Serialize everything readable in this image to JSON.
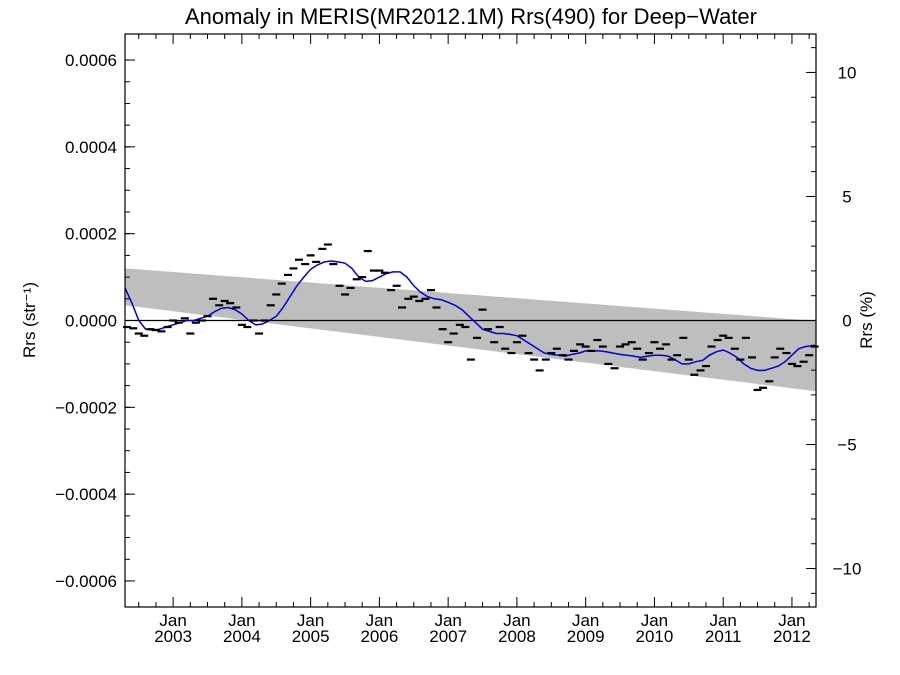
{
  "chart_data": {
    "type": "line",
    "title": "Anomaly in MERIS(MR2012.1M) Rrs(490) for Deep−Water",
    "ylabel": "Rrs (str⁻¹)",
    "ylabel_right": "Rrs (%)",
    "xlim": [
      2002.3,
      2012.35
    ],
    "ylim": [
      -0.00066,
      0.00066
    ],
    "ylim_right": [
      -11.55,
      11.55
    ],
    "yticks": [
      {
        "value": 0.0006,
        "label": "0.0006"
      },
      {
        "value": 0.0004,
        "label": "0.0004"
      },
      {
        "value": 0.0002,
        "label": "0.0002"
      },
      {
        "value": 0.0,
        "label": "0.0000"
      },
      {
        "value": -0.0002,
        "label": "−0.0002"
      },
      {
        "value": -0.0004,
        "label": "−0.0004"
      },
      {
        "value": -0.0006,
        "label": "−0.0006"
      }
    ],
    "yticks_right": [
      {
        "value": 10,
        "label": "10"
      },
      {
        "value": 5,
        "label": "5"
      },
      {
        "value": 0,
        "label": "0"
      },
      {
        "value": -5,
        "label": "−5"
      },
      {
        "value": -10,
        "label": "−10"
      }
    ],
    "xticks": [
      {
        "value": 2003.0,
        "month": "Jan",
        "year": "2003"
      },
      {
        "value": 2004.0,
        "month": "Jan",
        "year": "2004"
      },
      {
        "value": 2005.0,
        "month": "Jan",
        "year": "2005"
      },
      {
        "value": 2006.0,
        "month": "Jan",
        "year": "2006"
      },
      {
        "value": 2007.0,
        "month": "Jan",
        "year": "2007"
      },
      {
        "value": 2008.0,
        "month": "Jan",
        "year": "2008"
      },
      {
        "value": 2009.0,
        "month": "Jan",
        "year": "2009"
      },
      {
        "value": 2010.0,
        "month": "Jan",
        "year": "2010"
      },
      {
        "value": 2011.0,
        "month": "Jan",
        "year": "2011"
      },
      {
        "value": 2012.0,
        "month": "Jan",
        "year": "2012"
      }
    ],
    "zero_line": 0,
    "band": {
      "x": [
        2002.3,
        2012.35
      ],
      "upper": [
        0.00012,
        -1e-06
      ],
      "lower": [
        3.5e-05,
        -0.000163
      ],
      "color": "#bebebe"
    },
    "colors": {
      "smooth": "#0000dd",
      "points": "#000000",
      "band": "#bebebe",
      "axes": "#000000"
    },
    "series": [
      {
        "kind": "points",
        "x": [
          2002.33,
          2002.42,
          2002.5,
          2002.58,
          2002.67,
          2002.75,
          2002.83,
          2002.92,
          2003.0,
          2003.08,
          2003.17,
          2003.25,
          2003.33,
          2003.42,
          2003.5,
          2003.58,
          2003.67,
          2003.75,
          2003.83,
          2003.92,
          2004.0,
          2004.08,
          2004.17,
          2004.25,
          2004.33,
          2004.42,
          2004.5,
          2004.58,
          2004.67,
          2004.75,
          2004.83,
          2004.92,
          2005.0,
          2005.08,
          2005.17,
          2005.25,
          2005.33,
          2005.42,
          2005.5,
          2005.58,
          2005.67,
          2005.75,
          2005.83,
          2005.92,
          2006.0,
          2006.08,
          2006.17,
          2006.25,
          2006.33,
          2006.42,
          2006.5,
          2006.58,
          2006.67,
          2006.75,
          2006.83,
          2006.92,
          2007.0,
          2007.08,
          2007.17,
          2007.25,
          2007.33,
          2007.42,
          2007.5,
          2007.58,
          2007.67,
          2007.75,
          2007.83,
          2007.92,
          2008.0,
          2008.08,
          2008.17,
          2008.25,
          2008.33,
          2008.42,
          2008.5,
          2008.58,
          2008.67,
          2008.75,
          2008.83,
          2008.92,
          2009.0,
          2009.08,
          2009.17,
          2009.25,
          2009.33,
          2009.42,
          2009.5,
          2009.58,
          2009.67,
          2009.75,
          2009.83,
          2009.92,
          2010.0,
          2010.08,
          2010.17,
          2010.25,
          2010.33,
          2010.42,
          2010.5,
          2010.58,
          2010.67,
          2010.75,
          2010.83,
          2010.92,
          2011.0,
          2011.08,
          2011.17,
          2011.25,
          2011.33,
          2011.42,
          2011.5,
          2011.58,
          2011.67,
          2011.75,
          2011.83,
          2011.92,
          2012.0,
          2012.08,
          2012.17,
          2012.25,
          2012.33
        ],
        "y": [
          -1.5e-05,
          -1.8e-05,
          -3e-05,
          -3.5e-05,
          -2e-05,
          -2.2e-05,
          -2.5e-05,
          -1.5e-05,
          0.0,
          -5e-06,
          5e-06,
          -3e-05,
          -5e-06,
          0.0,
          1e-05,
          5e-05,
          3.5e-05,
          4.5e-05,
          4e-05,
          3e-05,
          -1e-05,
          -1.5e-05,
          0.0,
          -3e-05,
          0.0,
          3.5e-05,
          6e-05,
          8.5e-05,
          0.000105,
          0.00012,
          0.00014,
          0.00013,
          0.00015,
          0.000135,
          0.000165,
          0.000175,
          0.00013,
          8e-05,
          6e-05,
          7.5e-05,
          9.5e-05,
          0.0001,
          0.00016,
          0.000115,
          0.000115,
          0.00011,
          7e-05,
          8e-05,
          3e-05,
          5e-05,
          5.5e-05,
          4.5e-05,
          5e-05,
          7e-05,
          3e-05,
          -2e-05,
          -5e-05,
          -3e-05,
          -1e-05,
          -1.5e-05,
          -9e-05,
          -4e-05,
          2.5e-05,
          -2e-05,
          -5e-05,
          -1.5e-05,
          -6.5e-05,
          -7.5e-05,
          -5e-05,
          -3.5e-05,
          -7.5e-05,
          -9e-05,
          -0.000115,
          -9e-05,
          -7.5e-05,
          -6.5e-05,
          -8e-05,
          -9e-05,
          -7e-05,
          -5.5e-05,
          -6e-05,
          -7e-05,
          -4.5e-05,
          -6e-05,
          -0.0001,
          -0.00011,
          -6e-05,
          -5.5e-05,
          -5e-05,
          -6.5e-05,
          -9e-05,
          -7.5e-05,
          -5e-05,
          -6.5e-05,
          -5.5e-05,
          -9e-05,
          -8e-05,
          -4e-05,
          -9e-05,
          -0.000125,
          -0.000115,
          -0.000105,
          -6e-05,
          -4.5e-05,
          -3.5e-05,
          -4e-05,
          -6.5e-05,
          -9e-05,
          -4e-05,
          -8.5e-05,
          -0.00016,
          -0.000155,
          -0.00014,
          -8.5e-05,
          -6.5e-05,
          -7.5e-05,
          -0.0001,
          -0.000105,
          -9.5e-05,
          -8e-05,
          -6e-05
        ]
      },
      {
        "kind": "smooth-line",
        "x": [
          2002.3,
          2002.4,
          2002.5,
          2002.6,
          2002.7,
          2002.8,
          2002.9,
          2003.0,
          2003.1,
          2003.2,
          2003.3,
          2003.4,
          2003.5,
          2003.6,
          2003.7,
          2003.8,
          2003.9,
          2004.0,
          2004.1,
          2004.2,
          2004.3,
          2004.4,
          2004.5,
          2004.6,
          2004.7,
          2004.8,
          2004.9,
          2005.0,
          2005.1,
          2005.2,
          2005.3,
          2005.4,
          2005.5,
          2005.6,
          2005.7,
          2005.8,
          2005.9,
          2006.0,
          2006.1,
          2006.2,
          2006.3,
          2006.4,
          2006.5,
          2006.6,
          2006.7,
          2006.8,
          2006.9,
          2007.0,
          2007.1,
          2007.2,
          2007.3,
          2007.4,
          2007.5,
          2007.6,
          2007.7,
          2007.8,
          2007.9,
          2008.0,
          2008.1,
          2008.2,
          2008.3,
          2008.4,
          2008.5,
          2008.6,
          2008.7,
          2008.8,
          2008.9,
          2009.0,
          2009.1,
          2009.2,
          2009.3,
          2009.4,
          2009.5,
          2009.6,
          2009.7,
          2009.8,
          2009.9,
          2010.0,
          2010.1,
          2010.2,
          2010.3,
          2010.4,
          2010.5,
          2010.6,
          2010.7,
          2010.8,
          2010.9,
          2011.0,
          2011.1,
          2011.2,
          2011.3,
          2011.4,
          2011.5,
          2011.6,
          2011.7,
          2011.8,
          2011.9,
          2012.0,
          2012.1,
          2012.2,
          2012.3,
          2012.35
        ],
        "y": [
          7.5e-05,
          4e-05,
          0.0,
          -2e-05,
          -2.2e-05,
          -2e-05,
          -1.5e-05,
          -1e-05,
          -5e-06,
          0.0,
          0.0,
          5e-06,
          1e-05,
          2e-05,
          2.8e-05,
          3e-05,
          2.5e-05,
          1.5e-05,
          0.0,
          -1e-05,
          -8e-06,
          0.0,
          1e-05,
          3e-05,
          5.5e-05,
          8e-05,
          0.0001,
          0.000118,
          0.000128,
          0.000135,
          0.000137,
          0.000135,
          0.000132,
          0.00012,
          0.0001,
          9e-05,
          9.2e-05,
          0.0001,
          0.000108,
          0.000112,
          0.000112,
          0.0001,
          8e-05,
          6.5e-05,
          5.5e-05,
          5e-05,
          4.8e-05,
          4.2e-05,
          3.5e-05,
          2.5e-05,
          1e-05,
          -5e-06,
          -2e-05,
          -2.5e-05,
          -3e-05,
          -3e-05,
          -3.2e-05,
          -3.5e-05,
          -4.5e-05,
          -5.5e-05,
          -6.5e-05,
          -7.5e-05,
          -7.8e-05,
          -8e-05,
          -8.2e-05,
          -7.8e-05,
          -7.5e-05,
          -7e-05,
          -7e-05,
          -7e-05,
          -7.2e-05,
          -7.5e-05,
          -7.8e-05,
          -8e-05,
          -8.2e-05,
          -8.5e-05,
          -8.2e-05,
          -8e-05,
          -8e-05,
          -8.2e-05,
          -9e-05,
          -0.0001,
          -0.0001,
          -9.5e-05,
          -9.2e-05,
          -8e-05,
          -7.2e-05,
          -6.8e-05,
          -7.5e-05,
          -8.5e-05,
          -0.0001,
          -0.00011,
          -0.000115,
          -0.000115,
          -0.00011,
          -0.000105,
          -9.5e-05,
          -8e-05,
          -6.5e-05,
          -6e-05,
          -5.8e-05,
          -5.8e-05
        ]
      }
    ]
  }
}
